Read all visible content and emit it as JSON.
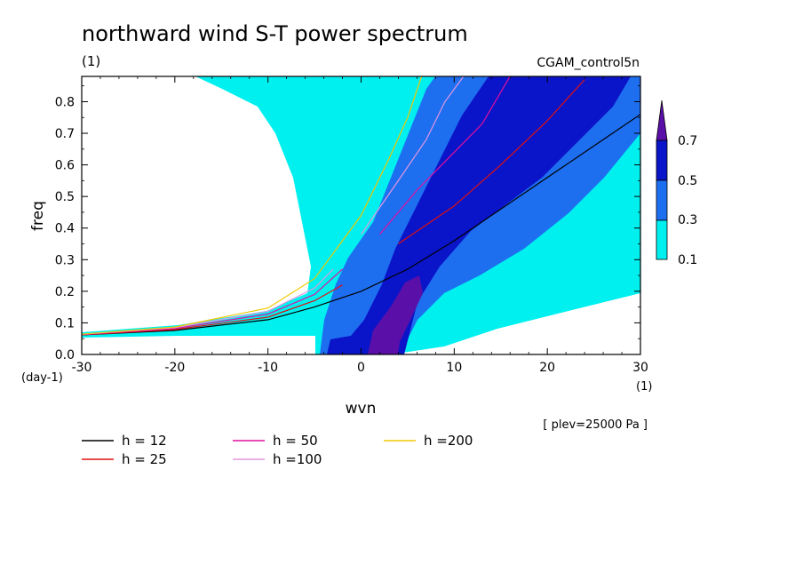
{
  "title": "northward wind S-T power spectrum",
  "subtitle_units": "(1)",
  "run_label": "CGAM_control5n",
  "level_note": "[ plev=25000 Pa ]",
  "colors": {
    "cyan": "#00f0f0",
    "blue": "#1e6ef0",
    "navy": "#0a14c8",
    "purple": "#5a10a8"
  },
  "chart_data": {
    "type": "heatmap",
    "xlabel": "wvn",
    "ylabel": "freq",
    "x_units": "(1)",
    "y_units": "(day-1)",
    "xlim": [
      -30,
      30
    ],
    "ylim": [
      0,
      0.88
    ],
    "xticks": [
      -30,
      -20,
      -10,
      0,
      10,
      20,
      30
    ],
    "xtick_labels": [
      "-30",
      "-20",
      "-10",
      "0",
      "10",
      "20",
      "30"
    ],
    "yticks": [
      0,
      0.1,
      0.2,
      0.3,
      0.4,
      0.5,
      0.6,
      0.7,
      0.8
    ],
    "ytick_labels": [
      "0.0",
      "0.1",
      "0.2",
      "0.3",
      "0.4",
      "0.5",
      "0.6",
      "0.7",
      "0.8"
    ],
    "contour_levels": [
      0.1,
      0.3,
      0.5,
      0.7
    ],
    "colorbar_labels": [
      "0.1",
      "0.3",
      "0.5",
      "0.7"
    ],
    "dispersion_curves": [
      {
        "label": "h = 12",
        "color": "#000000",
        "points": [
          [
            -30,
            0.062
          ],
          [
            -20,
            0.076
          ],
          [
            -10,
            0.11
          ],
          [
            -5,
            0.15
          ],
          [
            0,
            0.2
          ],
          [
            5,
            0.27
          ],
          [
            10,
            0.36
          ],
          [
            15,
            0.46
          ],
          [
            20,
            0.56
          ],
          [
            25,
            0.66
          ],
          [
            30,
            0.76
          ]
        ]
      },
      {
        "label": "h = 25",
        "color": "#e01010",
        "points": [
          [
            -30,
            0.062
          ],
          [
            -20,
            0.079
          ],
          [
            -10,
            0.118
          ],
          [
            -5,
            0.17
          ],
          [
            -2,
            0.22
          ]
        ],
        "hi_branch": [
          [
            4,
            0.35
          ],
          [
            10,
            0.47
          ],
          [
            15,
            0.6
          ],
          [
            20,
            0.74
          ],
          [
            24,
            0.87
          ]
        ]
      },
      {
        "label": "h = 50",
        "color": "#e010a0",
        "points": [
          [
            -30,
            0.063
          ],
          [
            -20,
            0.082
          ],
          [
            -10,
            0.128
          ],
          [
            -5,
            0.19
          ],
          [
            -2,
            0.27
          ]
        ],
        "hi_branch": [
          [
            2,
            0.38
          ],
          [
            6,
            0.52
          ],
          [
            10,
            0.64
          ],
          [
            13,
            0.73
          ],
          [
            16,
            0.88
          ]
        ]
      },
      {
        "label": "h =100",
        "color": "#e098e0",
        "points": [
          [
            -30,
            0.064
          ],
          [
            -20,
            0.085
          ],
          [
            -10,
            0.137
          ],
          [
            -5,
            0.21
          ],
          [
            -3,
            0.27
          ]
        ],
        "hi_branch": [
          [
            0,
            0.38
          ],
          [
            4,
            0.55
          ],
          [
            7,
            0.68
          ],
          [
            9,
            0.8
          ],
          [
            11,
            0.88
          ]
        ]
      },
      {
        "label": "h =200",
        "color": "#f0c800",
        "points": [
          [
            -30,
            0.064
          ],
          [
            -20,
            0.087
          ],
          [
            -10,
            0.147
          ],
          [
            -5,
            0.24
          ],
          [
            -3,
            0.32
          ],
          [
            0,
            0.44
          ],
          [
            3,
            0.62
          ],
          [
            5,
            0.75
          ],
          [
            6.5,
            0.88
          ]
        ]
      }
    ]
  }
}
